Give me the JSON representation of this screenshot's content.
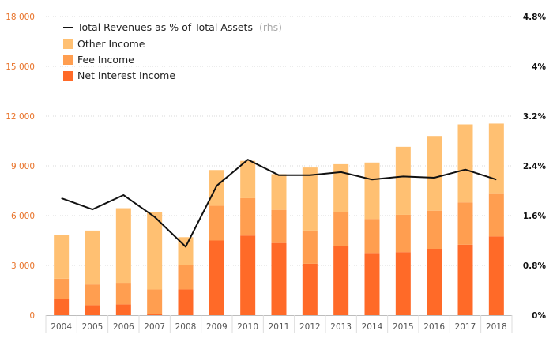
{
  "chart_data": {
    "type": "bar",
    "stacked": true,
    "categories": [
      "2004",
      "2005",
      "2006",
      "2007",
      "2008",
      "2009",
      "2010",
      "2011",
      "2012",
      "2013",
      "2014",
      "2015",
      "2016",
      "2017",
      "2018"
    ],
    "series": [
      {
        "name": "Net Interest Income",
        "color": "#ff6a28",
        "values": [
          1000,
          600,
          650,
          50,
          1550,
          4500,
          4800,
          4350,
          3100,
          4150,
          3750,
          3800,
          4000,
          4250,
          4750
        ]
      },
      {
        "name": "Fee Income",
        "color": "#ff9e50",
        "values": [
          1200,
          1250,
          1300,
          1500,
          1450,
          2100,
          2250,
          2000,
          2000,
          2050,
          2050,
          2250,
          2300,
          2550,
          2600
        ]
      },
      {
        "name": "Other Income",
        "color": "#ffc072",
        "values": [
          2650,
          3250,
          4500,
          4650,
          1700,
          2150,
          2250,
          2150,
          3800,
          2900,
          3400,
          4100,
          4500,
          4700,
          4200
        ]
      }
    ],
    "line": {
      "name": "Total Revenues as % of Total Assets",
      "note": "(rhs)",
      "color": "#111111",
      "values": [
        1.88,
        1.7,
        1.93,
        1.58,
        1.1,
        2.08,
        2.5,
        2.25,
        2.25,
        2.3,
        2.18,
        2.23,
        2.21,
        2.34,
        2.18
      ]
    },
    "y_left": {
      "range": [
        0,
        18000
      ],
      "ticks": [
        "0",
        "3 000",
        "6 000",
        "9 000",
        "12 000",
        "15 000",
        "18 000"
      ],
      "color": "#e8732a"
    },
    "y_right": {
      "range": [
        0,
        4.8
      ],
      "ticks": [
        "0%",
        "0.8%",
        "1.6%",
        "2.4%",
        "3.2%",
        "4%",
        "4.8%"
      ]
    },
    "legend_order": [
      "line",
      "Other Income",
      "Fee Income",
      "Net Interest Income"
    ],
    "legend_position": "top-left",
    "grid": true
  }
}
